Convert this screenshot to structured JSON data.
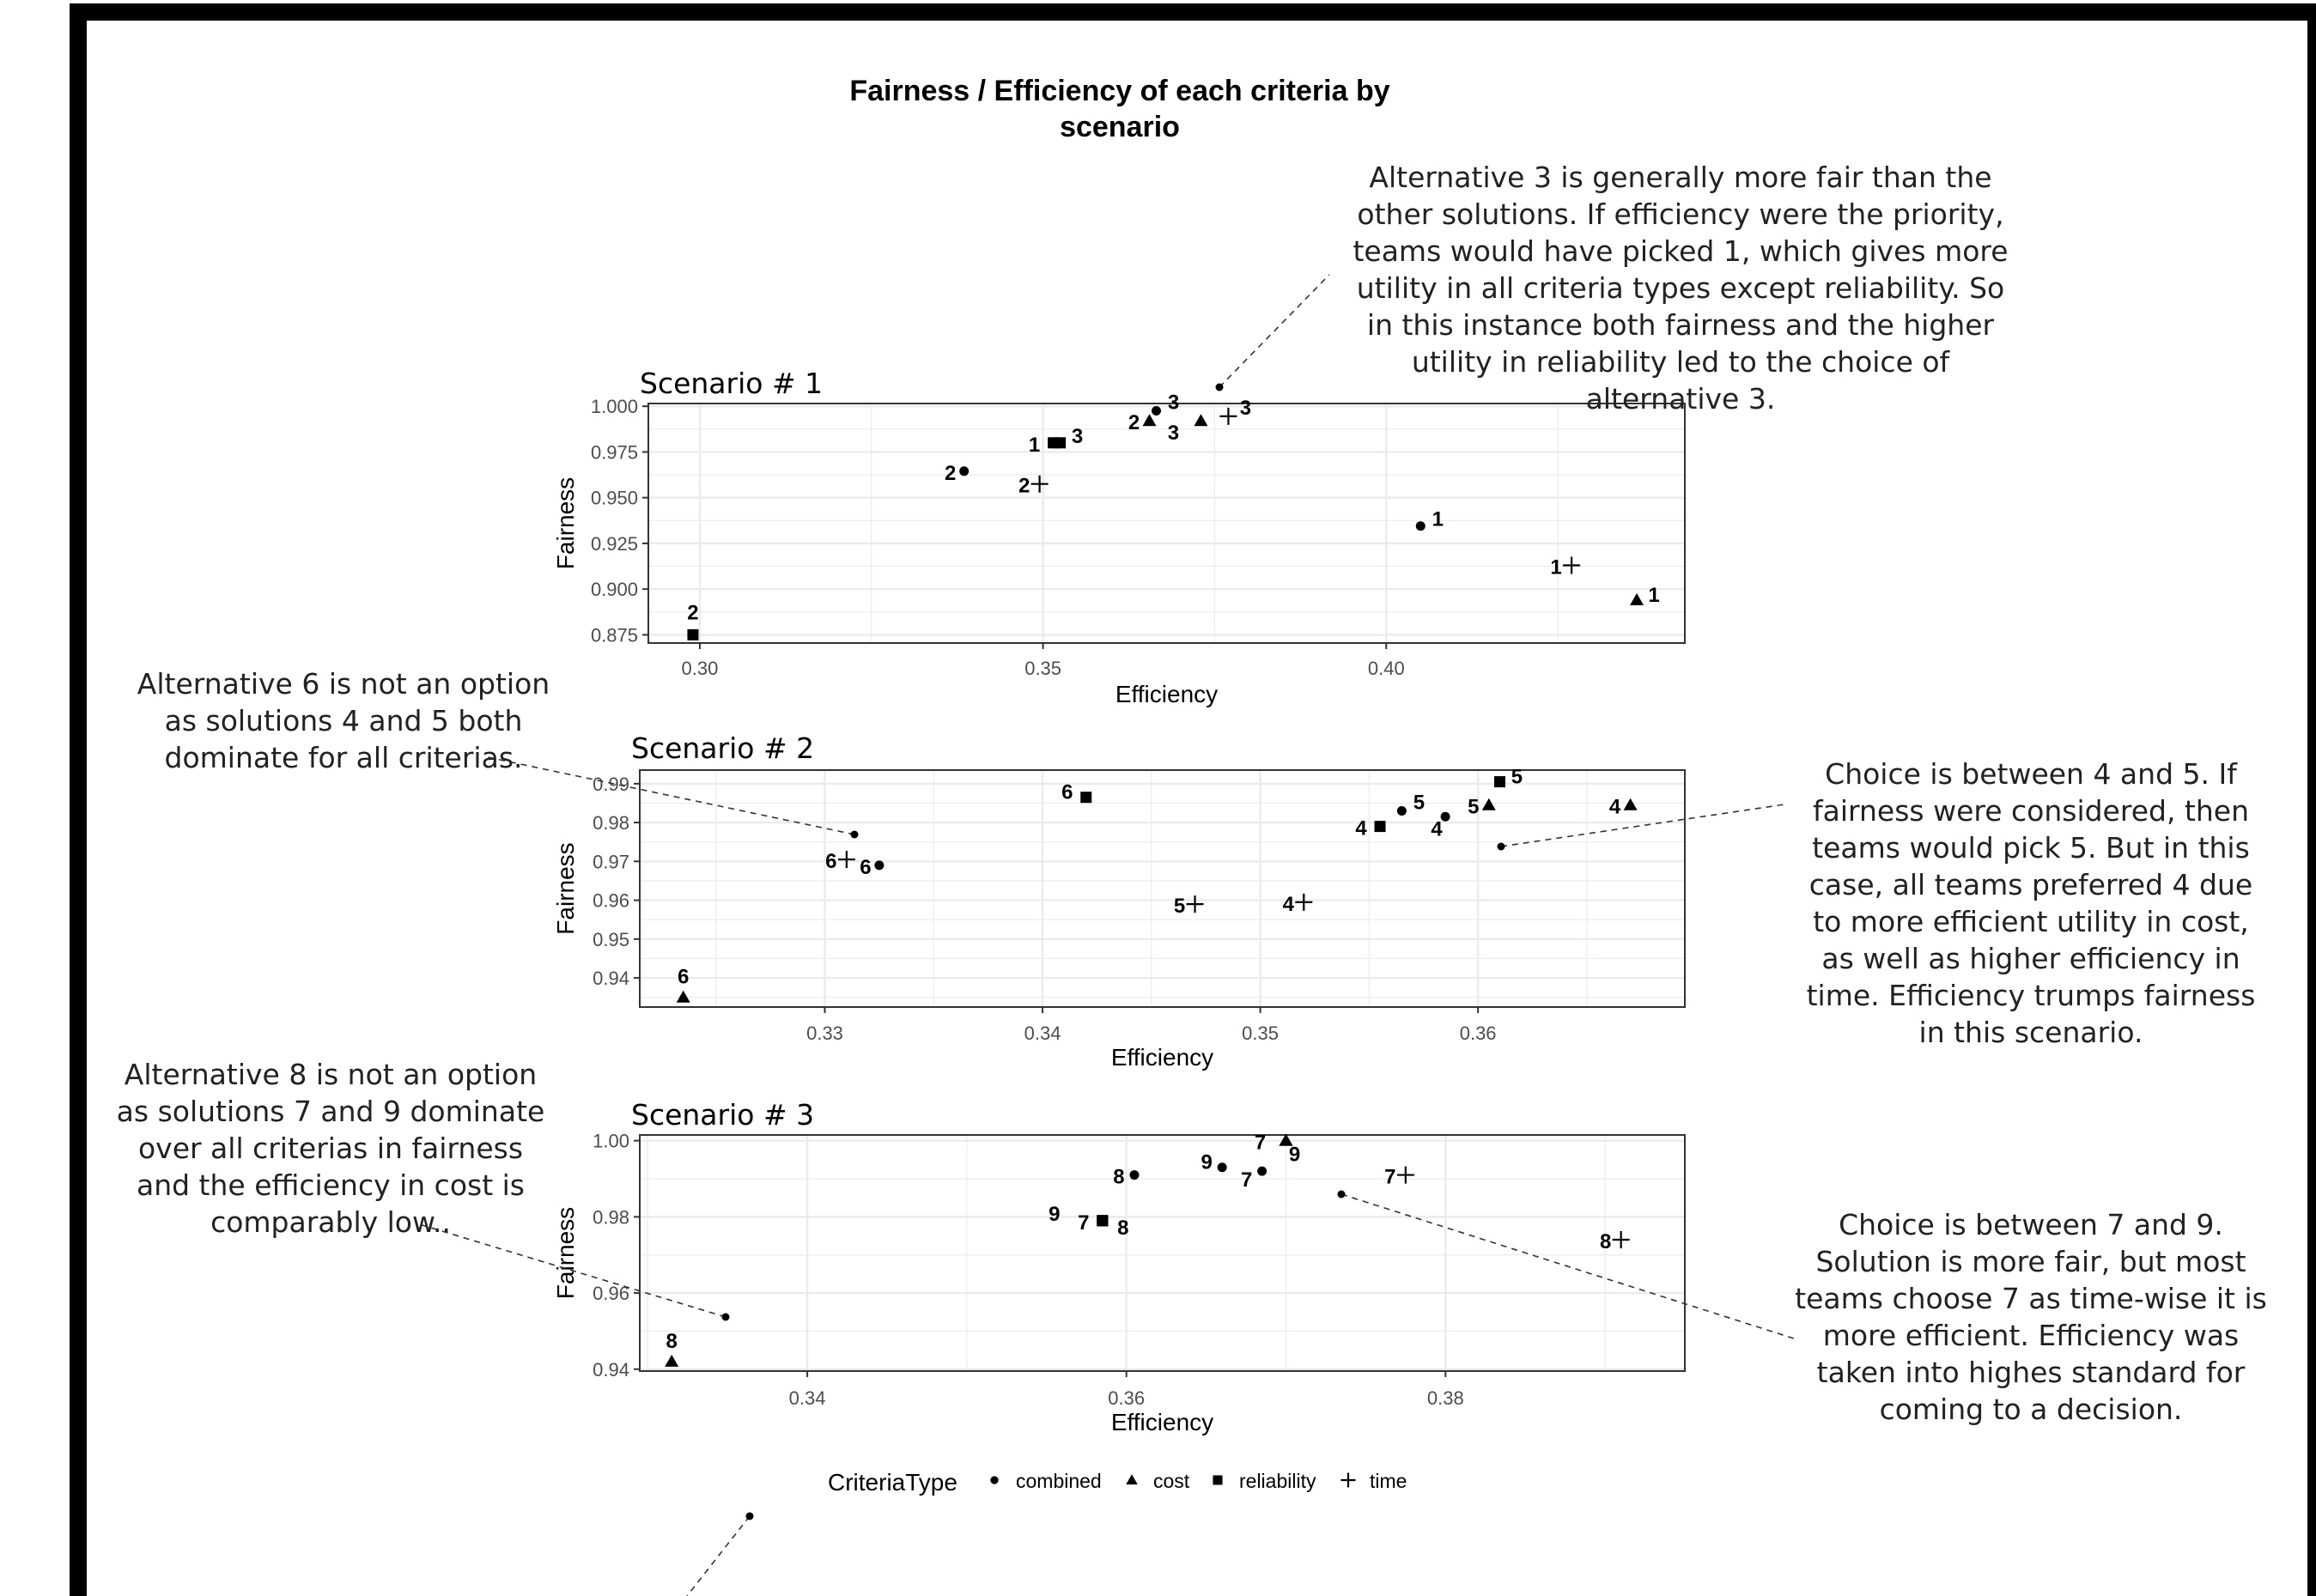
{
  "title_line1": "Fairness / Efficiency of each criteria by",
  "title_line2": "scenario",
  "legend": {
    "title": "CriteriaType",
    "entries": [
      {
        "label": "combined",
        "shape": "circle"
      },
      {
        "label": "cost",
        "shape": "triangle"
      },
      {
        "label": "reliability",
        "shape": "square"
      },
      {
        "label": "time",
        "shape": "plus"
      }
    ]
  },
  "annotations": {
    "a1": "Alternative 3 is generally more fair than the other solutions. If efficiency were the priority, teams would have picked 1, which gives more utility in all criteria types except reliability. So in this instance both fairness and the higher utility in reliability led to the choice of alternative 3.",
    "a2": "Alternative 6 is not an option as solutions 4 and 5 both dominate for all criterias.",
    "a3": "Choice is between 4 and 5. If fairness were considered, then teams would pick 5. But in this case, all teams preferred 4 due to more efficient utility in cost, as well as higher efficiency in time. Efficiency trumps fairness in this scenario.",
    "a4": "Alternative 8 is not an option as solutions 7 and 9 dominate over all criterias in fairness and the efficiency in cost is comparably low..",
    "a5": "Choice is between 7 and 9. Solution is more fair, but most teams choose 7 as time-wise it is more efficient. Efficiency was taken into highes standard for coming to a decision."
  },
  "chart_data": [
    {
      "type": "scatter",
      "title": "Scenario # 1",
      "xlabel": "Efficiency",
      "ylabel": "Fairness",
      "xlim": [
        0.2925,
        0.4435
      ],
      "ylim": [
        0.8705,
        1.0015
      ],
      "xticks": [
        0.3,
        0.35,
        0.4
      ],
      "xtick_labels": [
        "0.30",
        "0.35",
        "0.40"
      ],
      "yticks": [
        0.875,
        0.9,
        0.925,
        0.95,
        0.975,
        1.0
      ],
      "ytick_labels": [
        "0.875",
        "0.900",
        "0.925",
        "0.950",
        "0.975",
        "1.000"
      ],
      "points": [
        {
          "x": 0.3665,
          "y": 0.9975,
          "type": "combined",
          "label": "3"
        },
        {
          "x": 0.3385,
          "y": 0.9645,
          "type": "combined",
          "label": "2"
        },
        {
          "x": 0.405,
          "y": 0.9345,
          "type": "combined",
          "label": "1"
        },
        {
          "x": 0.3655,
          "y": 0.992,
          "type": "cost",
          "label": "2"
        },
        {
          "x": 0.373,
          "y": 0.992,
          "type": "cost",
          "label": "3"
        },
        {
          "x": 0.4365,
          "y": 0.894,
          "type": "cost",
          "label": "1"
        },
        {
          "x": 0.3515,
          "y": 0.98,
          "type": "reliability",
          "label": "1"
        },
        {
          "x": 0.3525,
          "y": 0.98,
          "type": "reliability",
          "label": "3"
        },
        {
          "x": 0.299,
          "y": 0.875,
          "type": "reliability",
          "label": "2"
        },
        {
          "x": 0.377,
          "y": 0.9945,
          "type": "time",
          "label": "3"
        },
        {
          "x": 0.3495,
          "y": 0.9575,
          "type": "time",
          "label": "2"
        },
        {
          "x": 0.427,
          "y": 0.913,
          "type": "time",
          "label": "1"
        }
      ]
    },
    {
      "type": "scatter",
      "title": "Scenario # 2",
      "xlabel": "Efficiency",
      "ylabel": "Fairness",
      "xlim": [
        0.3215,
        0.3695
      ],
      "ylim": [
        0.9325,
        0.9935
      ],
      "xticks": [
        0.33,
        0.34,
        0.35,
        0.36
      ],
      "xtick_labels": [
        "0.33",
        "0.34",
        "0.35",
        "0.36"
      ],
      "yticks": [
        0.94,
        0.95,
        0.96,
        0.97,
        0.98,
        0.99
      ],
      "ytick_labels": [
        "0.94",
        "0.95",
        "0.96",
        "0.97",
        "0.98",
        "0.99"
      ],
      "points": [
        {
          "x": 0.3325,
          "y": 0.969,
          "type": "combined",
          "label": "6"
        },
        {
          "x": 0.3565,
          "y": 0.983,
          "type": "combined",
          "label": "5"
        },
        {
          "x": 0.3585,
          "y": 0.9815,
          "type": "combined",
          "label": "4"
        },
        {
          "x": 0.3235,
          "y": 0.935,
          "type": "cost",
          "label": "6"
        },
        {
          "x": 0.3605,
          "y": 0.9845,
          "type": "cost",
          "label": "5"
        },
        {
          "x": 0.367,
          "y": 0.9845,
          "type": "cost",
          "label": "4"
        },
        {
          "x": 0.342,
          "y": 0.9865,
          "type": "reliability",
          "label": "6"
        },
        {
          "x": 0.3555,
          "y": 0.979,
          "type": "reliability",
          "label": "4"
        },
        {
          "x": 0.361,
          "y": 0.9905,
          "type": "reliability",
          "label": "5"
        },
        {
          "x": 0.331,
          "y": 0.9705,
          "type": "time",
          "label": "6"
        },
        {
          "x": 0.347,
          "y": 0.959,
          "type": "time",
          "label": "5"
        },
        {
          "x": 0.352,
          "y": 0.9595,
          "type": "time",
          "label": "4"
        }
      ]
    },
    {
      "type": "scatter",
      "title": "Scenario # 3",
      "xlabel": "Efficiency",
      "ylabel": "Fairness",
      "xlim": [
        0.3295,
        0.395
      ],
      "ylim": [
        0.9395,
        1.0015
      ],
      "xticks": [
        0.34,
        0.36,
        0.38
      ],
      "xtick_labels": [
        "0.34",
        "0.36",
        "0.38"
      ],
      "yticks": [
        0.94,
        0.96,
        0.98,
        1.0
      ],
      "ytick_labels": [
        "0.94",
        "0.96",
        "0.98",
        "1.00"
      ],
      "points": [
        {
          "x": 0.3605,
          "y": 0.991,
          "type": "combined",
          "label": "8"
        },
        {
          "x": 0.366,
          "y": 0.993,
          "type": "combined",
          "label": "9"
        },
        {
          "x": 0.3685,
          "y": 0.992,
          "type": "combined",
          "label": "7"
        },
        {
          "x": 0.37,
          "y": 1.0,
          "type": "cost",
          "label": "7"
        },
        {
          "x": 0.37,
          "y": 1.0,
          "type": "cost",
          "label": "9"
        },
        {
          "x": 0.3315,
          "y": 0.942,
          "type": "cost",
          "label": "8"
        },
        {
          "x": 0.3585,
          "y": 0.979,
          "type": "reliability",
          "label": "7"
        },
        {
          "x": 0.3585,
          "y": 0.979,
          "type": "reliability",
          "label": "8"
        },
        {
          "x": 0.3585,
          "y": 0.979,
          "type": "reliability",
          "label": "9"
        },
        {
          "x": 0.3775,
          "y": 0.991,
          "type": "time",
          "label": "7"
        },
        {
          "x": 0.391,
          "y": 0.974,
          "type": "time",
          "label": "8"
        }
      ]
    }
  ]
}
